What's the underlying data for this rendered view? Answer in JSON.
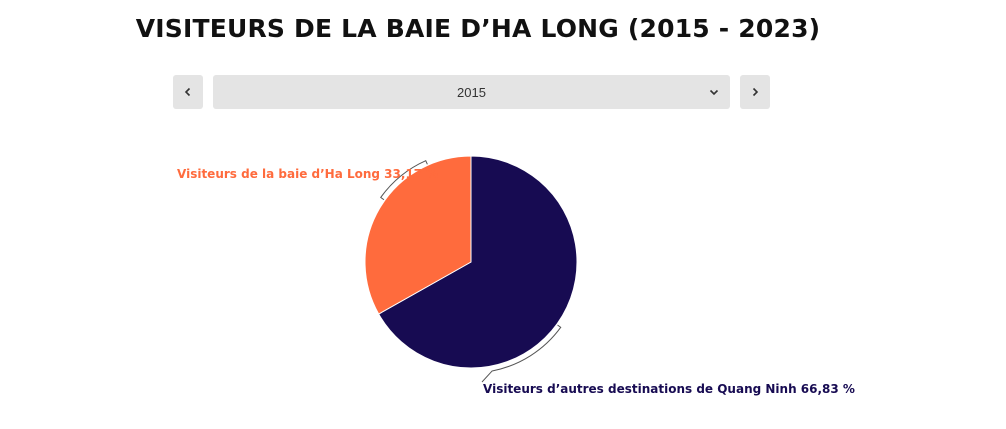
{
  "title": "VISITEURS DE LA BAIE D’HA LONG (2015 - 2023)",
  "selector": {
    "selected_year": "2015",
    "prev_icon": "chevron-left-icon",
    "next_icon": "chevron-right-icon",
    "dropdown_icon": "chevron-down-icon"
  },
  "colors": {
    "ha_long": "#ff6b3d",
    "other": "#170b52"
  },
  "chart_data": {
    "type": "pie",
    "unit": "%",
    "series": [
      {
        "name": "Visiteurs de la baie d’Ha Long",
        "value": 33.17,
        "label": "Visiteurs de la baie d’Ha Long 33,17 %",
        "color": "#ff6b3d"
      },
      {
        "name": "Visiteurs d’autres destinations de Quang Ninh",
        "value": 66.83,
        "label": "Visiteurs d’autres destinations de Quang Ninh 66,83 %",
        "color": "#170b52"
      }
    ]
  }
}
